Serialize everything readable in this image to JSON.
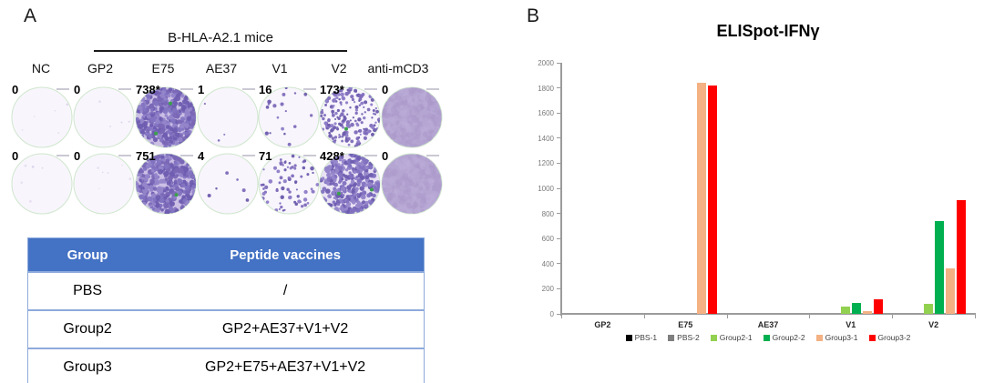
{
  "panel_a": {
    "label": "A",
    "group_header": "B-HLA-A2.1 mice",
    "column_labels": [
      "NC",
      "GP2",
      "E75",
      "AE37",
      "V1",
      "V2",
      "anti-mCD3"
    ],
    "well_rows": [
      [
        {
          "count": "0",
          "fill": "blank",
          "spots": 5,
          "green": 0
        },
        {
          "count": "0",
          "fill": "blank",
          "spots": 5,
          "green": 0
        },
        {
          "count": "738*",
          "fill": "dense",
          "spots": 400,
          "green": 2
        },
        {
          "count": "1",
          "fill": "spots",
          "spots": 3,
          "green": 0
        },
        {
          "count": "16",
          "fill": "spots",
          "spots": 18,
          "green": 0
        },
        {
          "count": "173*",
          "fill": "spots",
          "spots": 180,
          "green": 1
        },
        {
          "count": "0",
          "fill": "solid",
          "spots": 0,
          "green": 0
        }
      ],
      [
        {
          "count": "0",
          "fill": "blank",
          "spots": 5,
          "green": 0
        },
        {
          "count": "0",
          "fill": "blank",
          "spots": 6,
          "green": 0
        },
        {
          "count": "751",
          "fill": "dense",
          "spots": 400,
          "green": 1
        },
        {
          "count": "4",
          "fill": "spots",
          "spots": 6,
          "green": 0
        },
        {
          "count": "71",
          "fill": "spots",
          "spots": 75,
          "green": 0
        },
        {
          "count": "428*",
          "fill": "dense2",
          "spots": 320,
          "green": 2
        },
        {
          "count": "0",
          "fill": "solid",
          "spots": 0,
          "green": 0
        }
      ]
    ],
    "well_colors": {
      "blank_bg": "#f8f6fc",
      "spot_purple": "#7e6cbb",
      "dense_bg": "#cbbfe5",
      "dense2_bg": "#e9e3f4",
      "solid_bg": "#b4a5d2",
      "rim_green": "#cfe6cd",
      "green_spot": "#3ba14b"
    },
    "table": {
      "headers": [
        "Group",
        "Peptide vaccines"
      ],
      "rows": [
        [
          "PBS",
          "/"
        ],
        [
          "Group2",
          "GP2+AE37+V1+V2"
        ],
        [
          "Group3",
          "GP2+E75+AE37+V1+V2"
        ]
      ],
      "header_bg": "#4472C4",
      "border_color": "#8EAADB"
    }
  },
  "panel_b": {
    "label": "B"
  },
  "chart_data": {
    "type": "bar",
    "title": "ELISpot-IFNγ",
    "categories": [
      "GP2",
      "E75",
      "AE37",
      "V1",
      "V2"
    ],
    "series": [
      {
        "name": "PBS-1",
        "color": "#000000",
        "values": [
          0,
          0,
          0,
          0,
          0
        ]
      },
      {
        "name": "PBS-2",
        "color": "#7F7F7F",
        "values": [
          0,
          0,
          0,
          0,
          0
        ]
      },
      {
        "name": "Group2-1",
        "color": "#92D050",
        "values": [
          0,
          0,
          0,
          60,
          80
        ]
      },
      {
        "name": "Group2-2",
        "color": "#00B050",
        "values": [
          0,
          0,
          0,
          90,
          740
        ]
      },
      {
        "name": "Group3-1",
        "color": "#F4B183",
        "values": [
          0,
          1840,
          0,
          20,
          365
        ]
      },
      {
        "name": "Group3-2",
        "color": "#FF0000",
        "values": [
          0,
          1820,
          0,
          115,
          905
        ]
      }
    ],
    "ylim": [
      0,
      2000
    ],
    "ytick_step": 200,
    "grid": false,
    "legend_position": "bottom"
  }
}
